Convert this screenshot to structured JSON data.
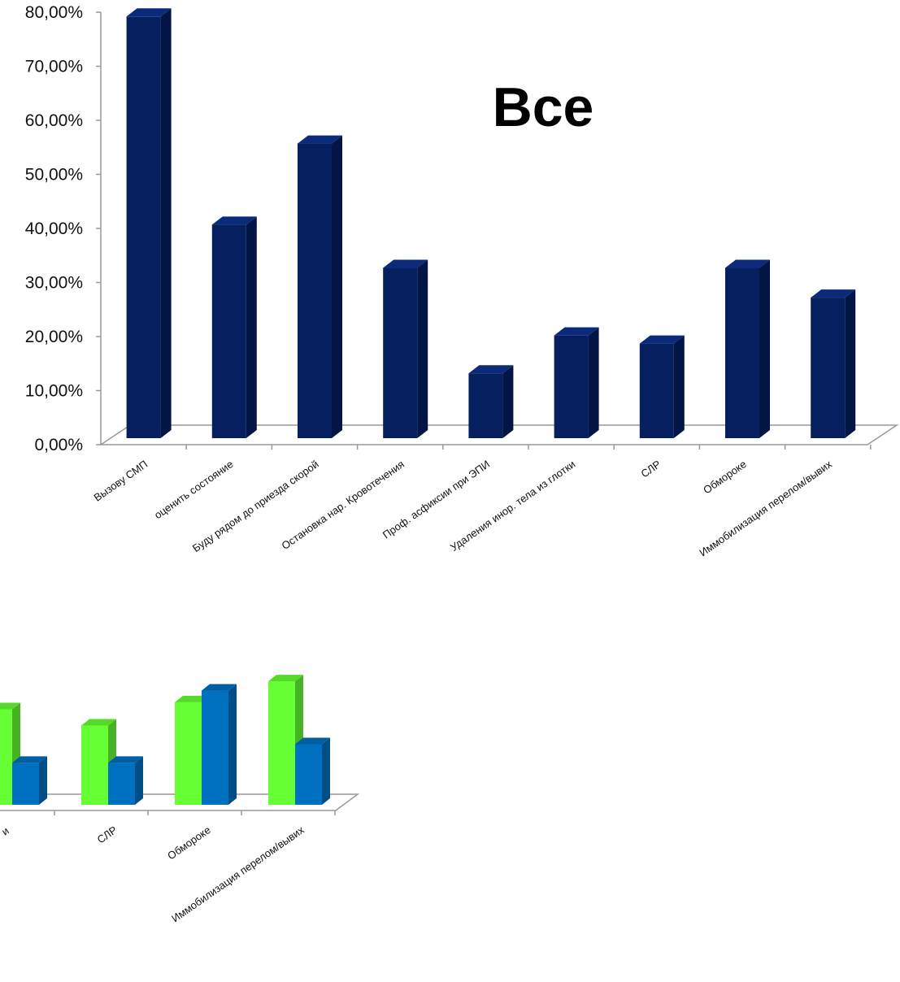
{
  "chart_data": [
    {
      "type": "bar",
      "title": "Все",
      "categories": [
        "Вызову СМП",
        "оценить состояние",
        "Буду  рядом до приезда скорой",
        "Остановка нар. Кровотечения",
        "Проф. асфиксии при ЭПИ",
        "Удаления инор. тела из глотки",
        "СЛР",
        "Обмороке",
        "Иммобилизация перелом/вывих"
      ],
      "values": [
        78,
        39.5,
        54.5,
        31.5,
        12,
        19,
        17.5,
        31.5,
        26
      ],
      "yticks": [
        "0,00%",
        "10,00%",
        "20,00%",
        "30,00%",
        "40,00%",
        "50,00%",
        "60,00%",
        "70,00%",
        "80,00%"
      ],
      "ylim": [
        0,
        80
      ],
      "xlabel": "",
      "ylabel": "",
      "colors": {
        "front": "#06205f",
        "side": "#031544",
        "top": "#0b2b7a"
      }
    },
    {
      "type": "bar",
      "title": "",
      "categories": [
        "СЛР",
        "Обмороке",
        "Иммобилизация перелом/вывих"
      ],
      "partial_category_label": "и",
      "series": [
        {
          "values": [
            17,
            22,
            26.5
          ],
          "color": "#66ff33"
        },
        {
          "values": [
            9,
            24.5,
            13
          ],
          "color": "#0070c0"
        }
      ],
      "partial_values": [
        20.5,
        9
      ],
      "ylim": [
        0,
        30
      ]
    }
  ]
}
